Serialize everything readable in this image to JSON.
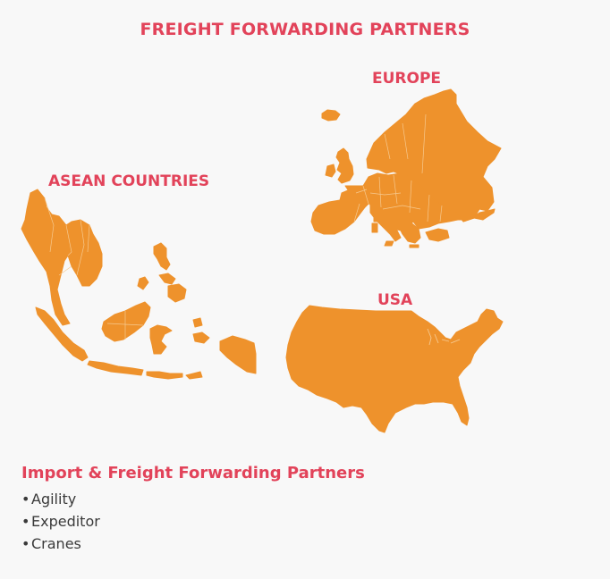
{
  "colors": {
    "accent": "#e2435a",
    "map_fill": "#ee922c",
    "border": "#f6c98f",
    "background": "#f8f8f8"
  },
  "title": "FREIGHT FORWARDING PARTNERS",
  "regions": {
    "europe": {
      "label": "EUROPE"
    },
    "asean": {
      "label": "ASEAN COUNTRIES"
    },
    "usa": {
      "label": "USA"
    }
  },
  "partners": {
    "heading": "Import & Freight Forwarding Partners",
    "bullet": "•",
    "items": [
      "Agility",
      "Expeditor",
      "Cranes"
    ]
  }
}
